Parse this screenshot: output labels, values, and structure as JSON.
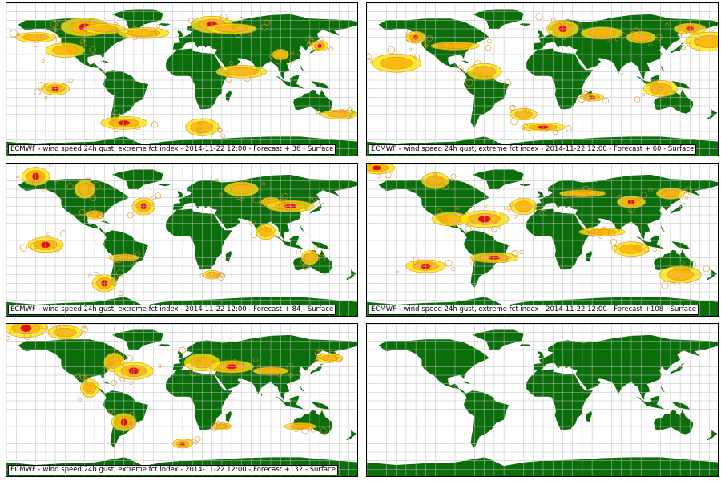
{
  "colors": {
    "land": "#0b6e0b",
    "grid": "#bfbfbf",
    "contour": "#e08a1e",
    "fill_light": "#ffe600",
    "fill_mid": "#ffb000",
    "fill_high": "#e01010"
  },
  "panels": [
    {
      "caption": "ECMWF - wind speed 24h gust, extreme fct index - 2014-11-22 12:00 - Forecast + 36 - Surface",
      "forecast_step": 36,
      "hotspots": [
        [
          -100,
          62
        ],
        [
          -80,
          60
        ],
        [
          -40,
          55
        ],
        [
          30,
          65
        ],
        [
          50,
          60
        ],
        [
          -120,
          35
        ],
        [
          140,
          40
        ],
        [
          -150,
          50
        ],
        [
          20,
          -55
        ],
        [
          -60,
          -50
        ],
        [
          100,
          30
        ],
        [
          160,
          -40
        ],
        [
          -130,
          -10
        ],
        [
          60,
          10
        ]
      ]
    },
    {
      "caption": "ECMWF - wind speed 24h gust, extreme fct index - 2014-11-22 12:00 - Forecast + 60 - Surface",
      "forecast_step": 60,
      "hotspots": [
        [
          -130,
          50
        ],
        [
          -90,
          40
        ],
        [
          -60,
          10
        ],
        [
          20,
          60
        ],
        [
          60,
          55
        ],
        [
          100,
          50
        ],
        [
          150,
          60
        ],
        [
          170,
          45
        ],
        [
          -150,
          20
        ],
        [
          50,
          -20
        ],
        [
          120,
          -10
        ],
        [
          -20,
          -40
        ],
        [
          0,
          -55
        ]
      ]
    },
    {
      "caption": "ECMWF - wind speed 24h gust, extreme fct index - 2014-11-22 12:00 - Forecast + 84 - Surface",
      "forecast_step": 84,
      "hotspots": [
        [
          -150,
          75
        ],
        [
          -100,
          60
        ],
        [
          -90,
          30
        ],
        [
          -40,
          40
        ],
        [
          60,
          60
        ],
        [
          90,
          45
        ],
        [
          110,
          40
        ],
        [
          85,
          10
        ],
        [
          -60,
          -20
        ],
        [
          -140,
          -5
        ],
        [
          30,
          -40
        ],
        [
          130,
          -20
        ],
        [
          -80,
          -50
        ]
      ]
    },
    {
      "caption": "ECMWF - wind speed 24h gust, extreme fct index - 2014-11-22 12:00 - Forecast +108 - Surface",
      "forecast_step": 108,
      "hotspots": [
        [
          -170,
          85
        ],
        [
          -110,
          70
        ],
        [
          -95,
          25
        ],
        [
          -60,
          25
        ],
        [
          -20,
          40
        ],
        [
          40,
          55
        ],
        [
          90,
          45
        ],
        [
          130,
          55
        ],
        [
          60,
          10
        ],
        [
          -50,
          -20
        ],
        [
          90,
          -10
        ],
        [
          140,
          -40
        ],
        [
          -120,
          -30
        ]
      ]
    },
    {
      "caption": "ECMWF - wind speed 24h gust, extreme fct index - 2014-11-22 12:00 - Forecast +132 - Surface",
      "forecast_step": 132,
      "hotspots": [
        [
          -160,
          85
        ],
        [
          -120,
          80
        ],
        [
          -70,
          45
        ],
        [
          -50,
          35
        ],
        [
          -95,
          15
        ],
        [
          20,
          45
        ],
        [
          50,
          40
        ],
        [
          90,
          35
        ],
        [
          150,
          50
        ],
        [
          -60,
          -25
        ],
        [
          40,
          -30
        ],
        [
          120,
          -30
        ],
        [
          0,
          -50
        ]
      ]
    },
    {
      "caption": "",
      "forecast_step": null,
      "hotspots": []
    }
  ]
}
